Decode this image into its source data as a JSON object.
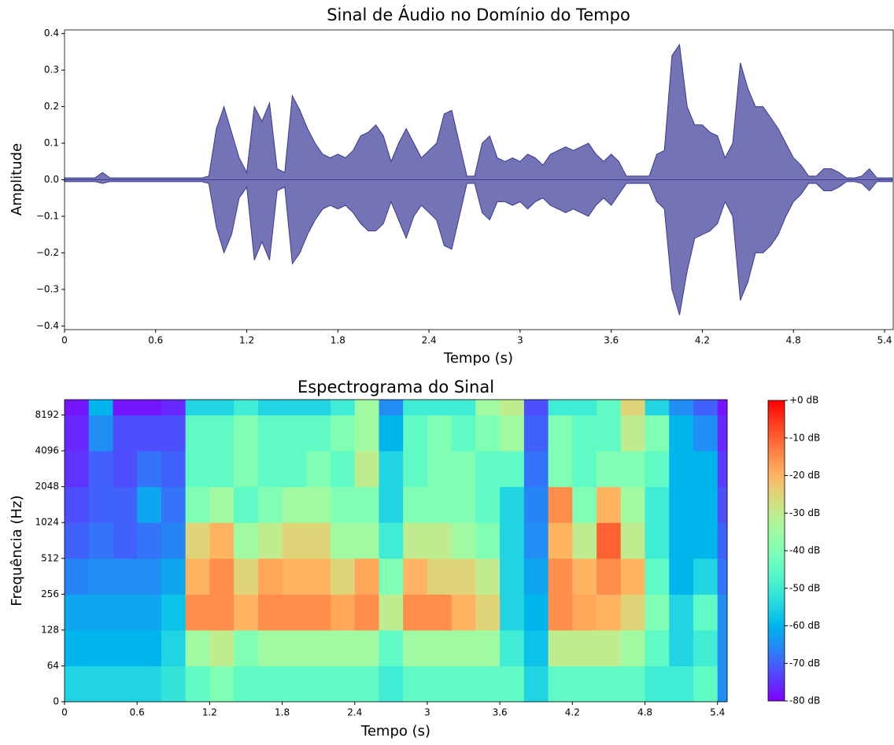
{
  "chart_data": [
    {
      "type": "waveform",
      "title": "Sinal de Áudio no Domínio do Tempo",
      "xlabel": "Tempo (s)",
      "ylabel": "Amplitude",
      "color": "#5a5aa8",
      "edge_color": "#3a3a90",
      "xlim": [
        0,
        5.457
      ],
      "ylim": [
        -0.41,
        0.41
      ],
      "xticks": [
        0,
        0.6,
        1.2,
        1.8,
        2.4,
        3,
        3.6,
        4.2,
        4.8,
        5.4
      ],
      "yticks": [
        0.4,
        0.3,
        0.2,
        0.1,
        {
          "value": 0,
          "label": "0.0"
        },
        {
          "value": -0.1,
          "label": "−0.1"
        },
        {
          "value": -0.2,
          "label": "−0.2"
        },
        {
          "value": -0.3,
          "label": "−0.3"
        },
        {
          "value": -0.4,
          "label": "−0.4"
        }
      ],
      "x": [
        0,
        0.05,
        0.1,
        0.15,
        0.2,
        0.25,
        0.3,
        0.35,
        0.4,
        0.45,
        0.5,
        0.55,
        0.6,
        0.65,
        0.7,
        0.75,
        0.8,
        0.85,
        0.9,
        0.95,
        1,
        1.05,
        1.1,
        1.15,
        1.2,
        1.25,
        1.3,
        1.35,
        1.4,
        1.45,
        1.5,
        1.55,
        1.6,
        1.65,
        1.7,
        1.75,
        1.8,
        1.85,
        1.9,
        1.95,
        2,
        2.05,
        2.1,
        2.15,
        2.2,
        2.25,
        2.3,
        2.35,
        2.4,
        2.45,
        2.5,
        2.55,
        2.6,
        2.65,
        2.7,
        2.75,
        2.8,
        2.85,
        2.9,
        2.95,
        3,
        3.05,
        3.1,
        3.15,
        3.2,
        3.25,
        3.3,
        3.35,
        3.4,
        3.45,
        3.5,
        3.55,
        3.6,
        3.65,
        3.7,
        3.75,
        3.8,
        3.85,
        3.9,
        3.95,
        4,
        4.05,
        4.1,
        4.15,
        4.2,
        4.25,
        4.3,
        4.35,
        4.4,
        4.45,
        4.5,
        4.55,
        4.6,
        4.65,
        4.7,
        4.75,
        4.8,
        4.85,
        4.9,
        4.95,
        5,
        5.05,
        5.1,
        5.15,
        5.2,
        5.25,
        5.3,
        5.35,
        5.4,
        5.45
      ],
      "upper": [
        0.005,
        0.005,
        0.005,
        0.005,
        0.005,
        0.02,
        0.005,
        0.005,
        0.005,
        0.005,
        0.005,
        0.005,
        0.005,
        0.005,
        0.005,
        0.005,
        0.005,
        0.005,
        0.005,
        0.01,
        0.14,
        0.2,
        0.13,
        0.06,
        0.02,
        0.2,
        0.16,
        0.21,
        0.03,
        0.02,
        0.23,
        0.19,
        0.14,
        0.1,
        0.07,
        0.06,
        0.07,
        0.06,
        0.08,
        0.12,
        0.13,
        0.15,
        0.12,
        0.05,
        0.1,
        0.14,
        0.1,
        0.06,
        0.08,
        0.1,
        0.18,
        0.19,
        0.1,
        0.01,
        0.01,
        0.1,
        0.12,
        0.06,
        0.05,
        0.06,
        0.05,
        0.07,
        0.06,
        0.04,
        0.07,
        0.08,
        0.09,
        0.08,
        0.09,
        0.1,
        0.07,
        0.05,
        0.07,
        0.05,
        0.01,
        0.01,
        0.01,
        0.01,
        0.07,
        0.08,
        0.34,
        0.37,
        0.2,
        0.15,
        0.15,
        0.13,
        0.12,
        0.06,
        0.1,
        0.32,
        0.25,
        0.2,
        0.2,
        0.17,
        0.14,
        0.1,
        0.06,
        0.04,
        0.01,
        0.01,
        0.03,
        0.03,
        0.02,
        0.005,
        0.005,
        0.01,
        0.03,
        0.005,
        0.005,
        0.005
      ],
      "lower": [
        -0.005,
        -0.005,
        -0.005,
        -0.005,
        -0.005,
        -0.01,
        -0.005,
        -0.005,
        -0.005,
        -0.005,
        -0.005,
        -0.005,
        -0.005,
        -0.005,
        -0.005,
        -0.005,
        -0.005,
        -0.005,
        -0.005,
        -0.01,
        -0.13,
        -0.2,
        -0.15,
        -0.05,
        -0.02,
        -0.22,
        -0.17,
        -0.22,
        -0.03,
        -0.02,
        -0.23,
        -0.2,
        -0.15,
        -0.11,
        -0.08,
        -0.07,
        -0.08,
        -0.07,
        -0.09,
        -0.12,
        -0.14,
        -0.14,
        -0.12,
        -0.06,
        -0.11,
        -0.16,
        -0.1,
        -0.07,
        -0.09,
        -0.11,
        -0.18,
        -0.19,
        -0.1,
        -0.01,
        -0.01,
        -0.09,
        -0.11,
        -0.06,
        -0.06,
        -0.07,
        -0.06,
        -0.08,
        -0.06,
        -0.05,
        -0.07,
        -0.08,
        -0.09,
        -0.08,
        -0.09,
        -0.1,
        -0.07,
        -0.05,
        -0.07,
        -0.04,
        -0.01,
        -0.01,
        -0.01,
        -0.01,
        -0.06,
        -0.08,
        -0.3,
        -0.37,
        -0.25,
        -0.16,
        -0.15,
        -0.14,
        -0.12,
        -0.06,
        -0.1,
        -0.33,
        -0.28,
        -0.2,
        -0.2,
        -0.18,
        -0.15,
        -0.1,
        -0.06,
        -0.04,
        -0.01,
        -0.01,
        -0.03,
        -0.03,
        -0.02,
        -0.005,
        -0.005,
        -0.01,
        -0.03,
        -0.005,
        -0.005,
        -0.005
      ]
    },
    {
      "type": "spectrogram",
      "title": "Espectrograma do Sinal",
      "xlabel": "Tempo (s)",
      "ylabel": "Frequência (Hz)",
      "colormap": "rainbow",
      "yscale": "symlog",
      "linthresh": 64,
      "base": 2,
      "xlim": [
        0,
        5.48
      ],
      "ylim": [
        0,
        11025
      ],
      "xticks": [
        0,
        0.6,
        1.2,
        1.8,
        2.4,
        3,
        3.6,
        4.2,
        4.8,
        5.4
      ],
      "yticks": [
        0,
        64,
        128,
        256,
        512,
        1024,
        2048,
        4096,
        8192
      ],
      "x": [
        0,
        0.2,
        0.4,
        0.6,
        0.8,
        1,
        1.2,
        1.4,
        1.6,
        1.8,
        2,
        2.2,
        2.4,
        2.6,
        2.8,
        3,
        3.2,
        3.4,
        3.6,
        3.8,
        4,
        4.2,
        4.4,
        4.6,
        4.8,
        5,
        5.2,
        5.4,
        5.48
      ],
      "y": [
        0,
        64,
        128,
        256,
        512,
        1024,
        2048,
        4096,
        8192,
        11025
      ],
      "values": [
        [
          -55,
          -60,
          -62,
          -66,
          -70,
          -72,
          -75,
          -76,
          -78
        ],
        [
          -55,
          -60,
          -62,
          -65,
          -68,
          -70,
          -70,
          -65,
          -60
        ],
        [
          -55,
          -60,
          -62,
          -65,
          -70,
          -70,
          -72,
          -72,
          -78
        ],
        [
          -55,
          -60,
          -62,
          -65,
          -68,
          -62,
          -68,
          -72,
          -78
        ],
        [
          -52,
          -55,
          -58,
          -62,
          -66,
          -68,
          -70,
          -72,
          -76
        ],
        [
          -45,
          -35,
          -15,
          -20,
          -25,
          -40,
          -45,
          -45,
          -55
        ],
        [
          -40,
          -30,
          -15,
          -15,
          -20,
          -35,
          -45,
          -45,
          -55
        ],
        [
          -45,
          -40,
          -20,
          -25,
          -35,
          -45,
          -40,
          -40,
          -50
        ],
        [
          -45,
          -35,
          -15,
          -18,
          -30,
          -40,
          -45,
          -45,
          -55
        ],
        [
          -45,
          -35,
          -15,
          -20,
          -25,
          -35,
          -45,
          -45,
          -55
        ],
        [
          -45,
          -35,
          -15,
          -20,
          -25,
          -35,
          -40,
          -45,
          -55
        ],
        [
          -45,
          -35,
          -18,
          -25,
          -35,
          -40,
          -45,
          -40,
          -50
        ],
        [
          -45,
          -35,
          -15,
          -18,
          -35,
          -40,
          -30,
          -35,
          -35
        ],
        [
          -50,
          -45,
          -30,
          -40,
          -50,
          -55,
          -55,
          -60,
          -65
        ],
        [
          -45,
          -35,
          -15,
          -20,
          -30,
          -40,
          -45,
          -45,
          -50
        ],
        [
          -45,
          -35,
          -15,
          -25,
          -30,
          -40,
          -40,
          -40,
          -50
        ],
        [
          -45,
          -35,
          -20,
          -25,
          -35,
          -40,
          -40,
          -45,
          -50
        ],
        [
          -45,
          -35,
          -25,
          -30,
          -40,
          -45,
          -45,
          -40,
          -35
        ],
        [
          -45,
          -50,
          -55,
          -55,
          -55,
          -55,
          -45,
          -35,
          -30
        ],
        [
          -55,
          -58,
          -60,
          -62,
          -65,
          -66,
          -68,
          -70,
          -72
        ],
        [
          -45,
          -30,
          -15,
          -15,
          -20,
          -15,
          -40,
          -40,
          -50
        ],
        [
          -45,
          -30,
          -18,
          -20,
          -30,
          -40,
          -45,
          -45,
          -50
        ],
        [
          -45,
          -30,
          -20,
          -15,
          -10,
          -20,
          -40,
          -45,
          -45
        ],
        [
          -45,
          -35,
          -25,
          -20,
          -30,
          -35,
          -40,
          -30,
          -25
        ],
        [
          -50,
          -45,
          -40,
          -45,
          -50,
          -50,
          -45,
          -40,
          -55
        ],
        [
          -50,
          -55,
          -55,
          -60,
          -60,
          -60,
          -60,
          -60,
          -65
        ],
        [
          -45,
          -50,
          -45,
          -55,
          -60,
          -60,
          -60,
          -65,
          -70
        ],
        [
          -65,
          -65,
          -65,
          -68,
          -70,
          -72,
          -74,
          -76,
          -78
        ]
      ],
      "colorbar": {
        "lim": [
          -80,
          0
        ],
        "ticks": [
          {
            "value": 0,
            "label": "+0 dB"
          },
          {
            "value": -10,
            "label": "-10 dB"
          },
          {
            "value": -20,
            "label": "-20 dB"
          },
          {
            "value": -30,
            "label": "-30 dB"
          },
          {
            "value": -40,
            "label": "-40 dB"
          },
          {
            "value": -50,
            "label": "-50 dB"
          },
          {
            "value": -60,
            "label": "-60 dB"
          },
          {
            "value": -70,
            "label": "-70 dB"
          },
          {
            "value": -80,
            "label": "-80 dB"
          }
        ]
      }
    }
  ]
}
